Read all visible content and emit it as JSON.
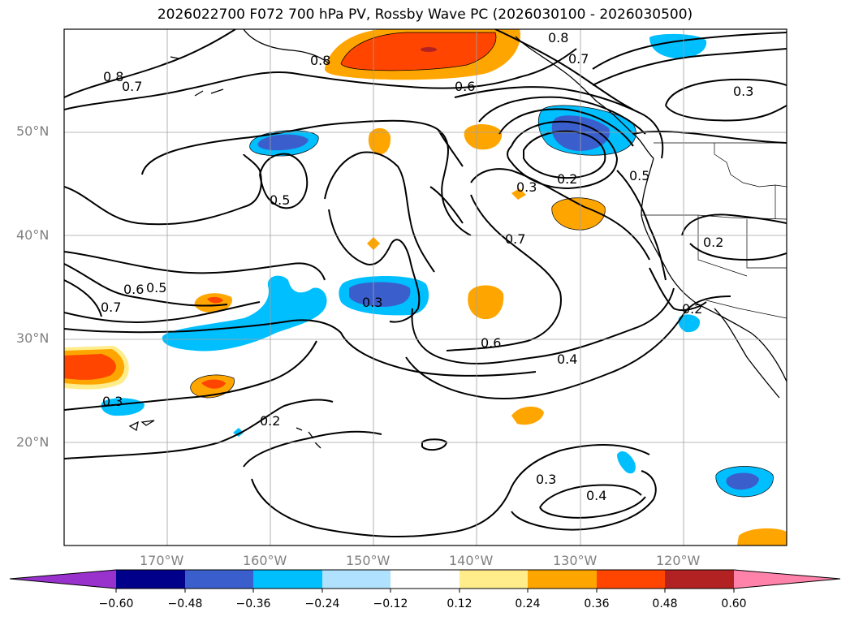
{
  "title": "2026022700 F072 700 hPa PV, Rossby Wave PC (2026030100 - 2026030500)",
  "lat_labels": [
    "50°N",
    "40°N",
    "30°N",
    "20°N"
  ],
  "lon_labels": [
    "170°W",
    "160°W",
    "150°W",
    "140°W",
    "130°W",
    "120°W"
  ],
  "contour_labels": [
    "0.8",
    "0.7",
    "0.8",
    "0.6",
    "0.8",
    "0.7",
    "0.3",
    "0.5",
    "0.3",
    "0.2",
    "0.5",
    "0.7",
    "0.2",
    "0.5",
    "0.6",
    "0.7",
    "0.3",
    "0.6",
    "0.4",
    "0.2",
    "0.3",
    "0.2",
    "0.3",
    "0.4"
  ],
  "colorbar": {
    "ticks": [
      "−0.60",
      "−0.48",
      "−0.36",
      "−0.24",
      "−0.12",
      "0.12",
      "0.24",
      "0.36",
      "0.48",
      "0.60"
    ],
    "colors": [
      "#9932cc",
      "#00008b",
      "#3a5fcd",
      "#00bfff",
      "#b0e2ff",
      "#ffffff",
      "#ffec8b",
      "#ffa500",
      "#ff4500",
      "#b22222",
      "#ff82ab"
    ]
  }
}
